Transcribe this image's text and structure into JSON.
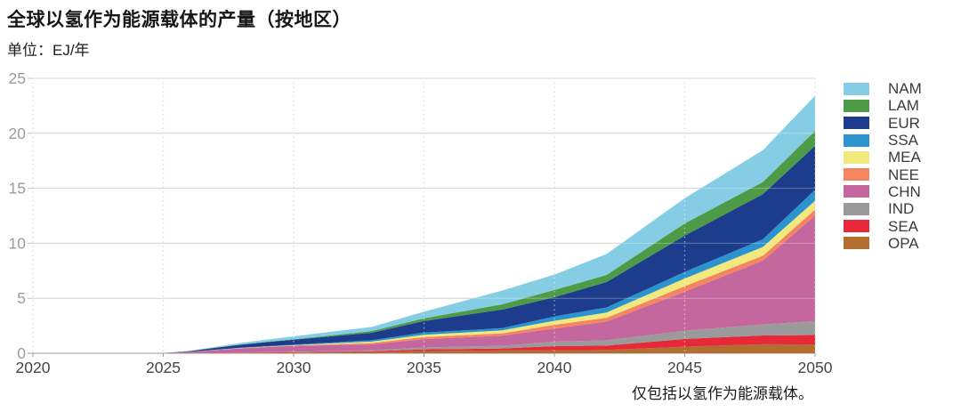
{
  "page": {
    "title": "全球以氢作为能源载体的产量（按地区）",
    "subtitle": "单位：EJ/年",
    "footnote": "仅包括以氢作为能源载体。"
  },
  "chart_data": {
    "type": "area",
    "stacked": true,
    "title": "全球以氢作为能源载体的产量（按地区）",
    "ylabel": "EJ/年",
    "xlabel": "",
    "xlim": [
      2020,
      2050
    ],
    "ylim": [
      0,
      25
    ],
    "xticks": [
      2020,
      2025,
      2030,
      2035,
      2040,
      2045,
      2050
    ],
    "yticks": [
      0,
      5,
      10,
      15,
      20,
      25
    ],
    "grid": {
      "horizontal": "solid",
      "vertical": "dotted"
    },
    "legend_position": "right",
    "legend_order": [
      "NAM",
      "LAM",
      "EUR",
      "SSA",
      "MEA",
      "NEE",
      "CHN",
      "IND",
      "SEA",
      "OPA"
    ],
    "stack_order_note": "series listed bottom-to-top of the stack",
    "x": [
      2020,
      2024,
      2025,
      2026,
      2027,
      2028,
      2029,
      2030,
      2033,
      2035,
      2038,
      2040,
      2042,
      2045,
      2048,
      2050
    ],
    "series": [
      {
        "name": "OPA",
        "color": "#B26E2F",
        "values": [
          0,
          0,
          0,
          0.01,
          0.02,
          0.03,
          0.04,
          0.05,
          0.1,
          0.2,
          0.25,
          0.27,
          0.3,
          0.6,
          0.82,
          0.8
        ]
      },
      {
        "name": "SEA",
        "color": "#E62839",
        "values": [
          0,
          0,
          0,
          0.005,
          0.01,
          0.02,
          0.03,
          0.04,
          0.08,
          0.15,
          0.18,
          0.38,
          0.4,
          0.7,
          0.8,
          0.86
        ]
      },
      {
        "name": "IND",
        "color": "#9A9A9A",
        "values": [
          0,
          0,
          0,
          0.005,
          0.01,
          0.02,
          0.03,
          0.04,
          0.08,
          0.18,
          0.25,
          0.4,
          0.48,
          0.75,
          1.0,
          1.26
        ]
      },
      {
        "name": "CHN",
        "color": "#C4679F",
        "values": [
          0,
          0,
          0.01,
          0.1,
          0.25,
          0.38,
          0.47,
          0.55,
          0.55,
          0.75,
          0.93,
          1.2,
          1.7,
          3.55,
          5.8,
          9.6
        ]
      },
      {
        "name": "NEE",
        "color": "#F58560",
        "values": [
          0,
          0,
          0,
          0.005,
          0.01,
          0.02,
          0.025,
          0.03,
          0.12,
          0.2,
          0.2,
          0.34,
          0.35,
          0.5,
          0.45,
          0.55
        ]
      },
      {
        "name": "MEA",
        "color": "#F1E87E",
        "values": [
          0,
          0,
          0,
          0.005,
          0.01,
          0.02,
          0.025,
          0.03,
          0.13,
          0.2,
          0.27,
          0.36,
          0.47,
          0.7,
          0.8,
          0.8
        ]
      },
      {
        "name": "SSA",
        "color": "#2B93CE",
        "values": [
          0,
          0,
          0,
          0.005,
          0.01,
          0.02,
          0.03,
          0.04,
          0.13,
          0.2,
          0.21,
          0.4,
          0.47,
          0.6,
          0.7,
          1.0
        ]
      },
      {
        "name": "EUR",
        "color": "#1E3C8C",
        "values": [
          0,
          0,
          0.005,
          0.06,
          0.18,
          0.28,
          0.37,
          0.45,
          0.68,
          1.05,
          1.68,
          1.75,
          2.3,
          3.3,
          4.1,
          4.0
        ]
      },
      {
        "name": "LAM",
        "color": "#4E9B47",
        "values": [
          0,
          0,
          0,
          0.01,
          0.015,
          0.02,
          0.03,
          0.04,
          0.15,
          0.25,
          0.48,
          0.65,
          0.65,
          1.1,
          1.1,
          1.35
        ]
      },
      {
        "name": "NAM",
        "color": "#85CDE4",
        "values": [
          0,
          0,
          0.005,
          0.02,
          0.07,
          0.14,
          0.2,
          0.27,
          0.38,
          0.6,
          1.25,
          1.4,
          1.9,
          2.3,
          2.9,
          3.2
        ]
      }
    ],
    "colors": {
      "h_gridline": "#c6c6c6",
      "v_gridline": "#c2c2c2",
      "axis_line": "#b0b0b0",
      "y_tick_label": "#9b9b9b",
      "x_tick_label": "#454545"
    }
  }
}
